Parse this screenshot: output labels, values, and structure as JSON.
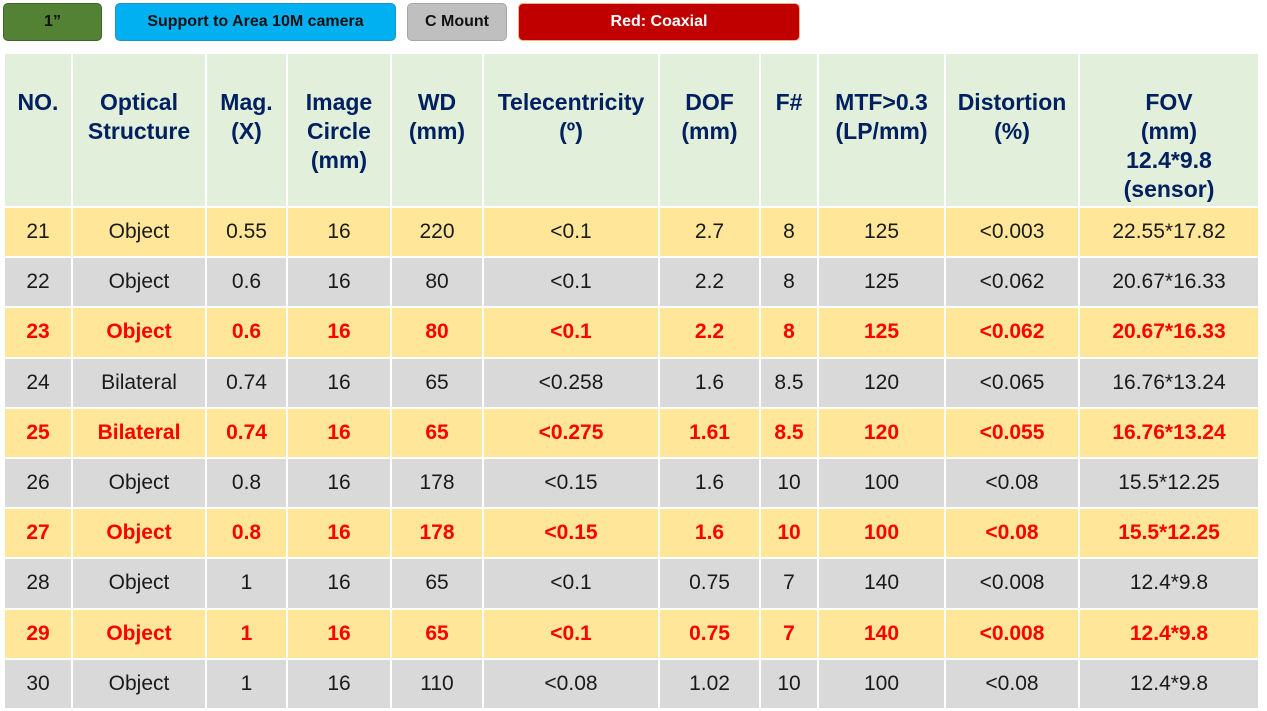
{
  "tags": {
    "size": "1”",
    "support": "Support to Area 10M camera",
    "mount": "C Mount",
    "legend": "Red: Coaxial"
  },
  "colors": {
    "header_bg": "#e2efda",
    "header_text": "#002060",
    "row_yellow": "#ffe699",
    "row_gray": "#d9d9d9",
    "coaxial_text": "#ff0000",
    "tag_green": "#548235",
    "tag_blue": "#00b0f0",
    "tag_gray": "#bfbfbf",
    "tag_red": "#c00000"
  },
  "table": {
    "headers": [
      [
        "NO."
      ],
      [
        "Optical",
        "Structure"
      ],
      [
        "Mag.",
        "(X)"
      ],
      [
        "Image",
        "Circle",
        "(mm)"
      ],
      [
        "WD",
        "(mm)"
      ],
      [
        "Telecentricity",
        "(º)"
      ],
      [
        "DOF",
        "(mm)"
      ],
      [
        "F#"
      ],
      [
        "MTF>0.3",
        "(LP/mm)"
      ],
      [
        "Distortion",
        "(%)"
      ],
      [
        "FOV",
        "(mm)",
        "12.4*9.8",
        "(sensor)"
      ]
    ],
    "rows": [
      {
        "style": "yellow",
        "coaxial": false,
        "cells": [
          "21",
          "Object",
          "0.55",
          "16",
          "220",
          "<0.1",
          "2.7",
          "8",
          "125",
          "<0.003",
          "22.55*17.82"
        ]
      },
      {
        "style": "gray",
        "coaxial": false,
        "cells": [
          "22",
          "Object",
          "0.6",
          "16",
          "80",
          "<0.1",
          "2.2",
          "8",
          "125",
          "<0.062",
          "20.67*16.33"
        ]
      },
      {
        "style": "yellow",
        "coaxial": true,
        "cells": [
          "23",
          "Object",
          "0.6",
          "16",
          "80",
          "<0.1",
          "2.2",
          "8",
          "125",
          "<0.062",
          "20.67*16.33"
        ]
      },
      {
        "style": "gray",
        "coaxial": false,
        "cells": [
          "24",
          "Bilateral",
          "0.74",
          "16",
          "65",
          "<0.258",
          "1.6",
          "8.5",
          "120",
          "<0.065",
          "16.76*13.24"
        ]
      },
      {
        "style": "yellow",
        "coaxial": true,
        "cells": [
          "25",
          "Bilateral",
          "0.74",
          "16",
          "65",
          "<0.275",
          "1.61",
          "8.5",
          "120",
          "<0.055",
          "16.76*13.24"
        ]
      },
      {
        "style": "gray",
        "coaxial": false,
        "cells": [
          "26",
          "Object",
          "0.8",
          "16",
          "178",
          "<0.15",
          "1.6",
          "10",
          "100",
          "<0.08",
          "15.5*12.25"
        ]
      },
      {
        "style": "yellow",
        "coaxial": true,
        "cells": [
          "27",
          "Object",
          "0.8",
          "16",
          "178",
          "<0.15",
          "1.6",
          "10",
          "100",
          "<0.08",
          "15.5*12.25"
        ]
      },
      {
        "style": "gray",
        "coaxial": false,
        "cells": [
          "28",
          "Object",
          "1",
          "16",
          "65",
          "<0.1",
          "0.75",
          "7",
          "140",
          "<0.008",
          "12.4*9.8"
        ]
      },
      {
        "style": "yellow",
        "coaxial": true,
        "cells": [
          "29",
          "Object",
          "1",
          "16",
          "65",
          "<0.1",
          "0.75",
          "7",
          "140",
          "<0.008",
          "12.4*9.8"
        ]
      },
      {
        "style": "gray",
        "coaxial": false,
        "cells": [
          "30",
          "Object",
          "1",
          "16",
          "110",
          "<0.08",
          "1.02",
          "10",
          "100",
          "<0.08",
          "12.4*9.8"
        ]
      }
    ]
  }
}
